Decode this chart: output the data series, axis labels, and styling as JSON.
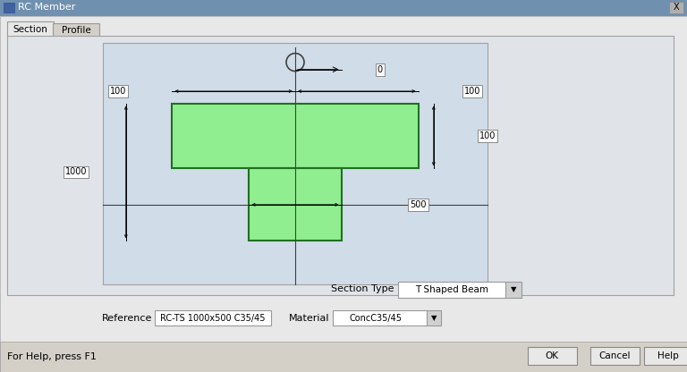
{
  "title": "RC Member",
  "bg_color": "#c8d0d8",
  "dialog_bg": "#e8e8e8",
  "canvas_bg": "#d0dce8",
  "tab_section": "Section",
  "tab_profile": "Profile",
  "section_type_label": "Section Type",
  "section_type_value": "T Shaped Beam",
  "reference_label": "Reference",
  "reference_value": "RC-TS 1000x500 C35/45",
  "material_label": "Material",
  "material_value": "ConcC35/45",
  "help_text": "For Help, press F1",
  "btn_ok": "OK",
  "btn_cancel": "Cancel",
  "btn_help": "Help",
  "dim_0": "0",
  "dim_100a": "100",
  "dim_100b": "100",
  "dim_100c": "100",
  "dim_1000": "1000",
  "dim_500": "500",
  "green_fill": "#90EE90",
  "green_edge": "#207020",
  "titlebar_color": "#7090b0",
  "icon_color": "#4060a0"
}
